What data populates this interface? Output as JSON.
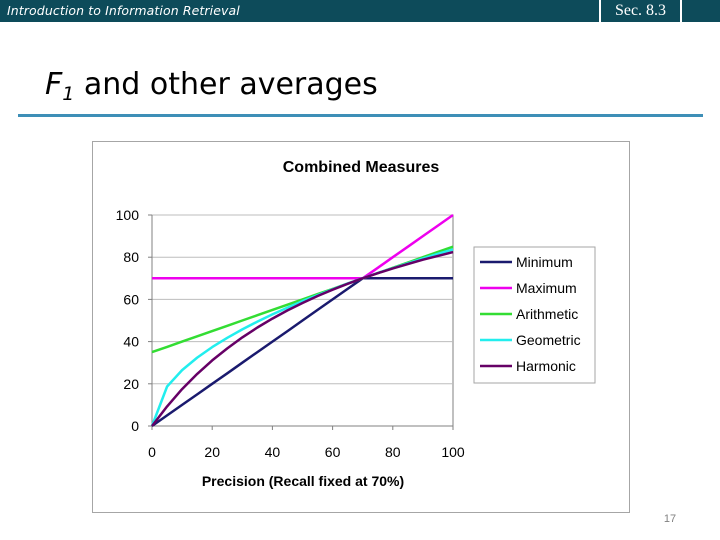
{
  "header": {
    "course_title": "Introduction to Information Retrieval",
    "section_ref": "Sec. 8.3"
  },
  "slide": {
    "title_prefix": "F",
    "title_subscript": "1",
    "title_rest": " and other averages",
    "page_number": "17"
  },
  "colors": {
    "header_bar": "#0d4b5a",
    "title_rule": "#3e8fb7",
    "minimum": "#1a1a6e",
    "maximum": "#ee00ee",
    "arithmetic": "#33dd33",
    "geometric": "#22eeee",
    "harmonic": "#660066"
  },
  "chart_data": {
    "type": "line",
    "title": "Combined Measures",
    "xlabel": "Precision (Recall fixed at 70%)",
    "ylabel": "",
    "xlim": [
      0,
      100
    ],
    "ylim": [
      0,
      100
    ],
    "xticks": [
      "0",
      "20",
      "40",
      "60",
      "80",
      "100"
    ],
    "yticks": [
      "0",
      "20",
      "40",
      "60",
      "80",
      "100"
    ],
    "grid": "horizontal",
    "legend_position": "right",
    "x": [
      0,
      5,
      10,
      15,
      20,
      25,
      30,
      35,
      40,
      45,
      50,
      55,
      60,
      65,
      70,
      75,
      80,
      85,
      90,
      95,
      100
    ],
    "series": [
      {
        "name": "Minimum",
        "color": "#1a1a6e",
        "values": [
          0,
          5,
          10,
          15,
          20,
          25,
          30,
          35,
          40,
          45,
          50,
          55,
          60,
          65,
          70,
          70,
          70,
          70,
          70,
          70,
          70
        ]
      },
      {
        "name": "Maximum",
        "color": "#ee00ee",
        "values": [
          70,
          70,
          70,
          70,
          70,
          70,
          70,
          70,
          70,
          70,
          70,
          70,
          70,
          70,
          70,
          75,
          80,
          85,
          90,
          95,
          100
        ]
      },
      {
        "name": "Arithmetic",
        "color": "#33dd33",
        "values": [
          35,
          37.5,
          40,
          42.5,
          45,
          47.5,
          50,
          52.5,
          55,
          57.5,
          60,
          62.5,
          65,
          67.5,
          70,
          72.5,
          75,
          77.5,
          80,
          82.5,
          85
        ]
      },
      {
        "name": "Geometric",
        "color": "#22eeee",
        "values": [
          0,
          18.7,
          26.5,
          32.4,
          37.4,
          41.8,
          45.8,
          49.5,
          52.9,
          56.1,
          59.2,
          62.0,
          64.8,
          67.5,
          70,
          72.5,
          74.8,
          77.1,
          79.4,
          81.6,
          83.7
        ]
      },
      {
        "name": "Harmonic",
        "color": "#660066",
        "values": [
          0,
          9.3,
          17.5,
          24.7,
          31.1,
          36.8,
          42.0,
          46.7,
          50.9,
          54.8,
          58.3,
          61.6,
          64.6,
          67.4,
          70,
          72.4,
          74.7,
          76.8,
          78.8,
          80.6,
          82.4
        ]
      }
    ]
  }
}
